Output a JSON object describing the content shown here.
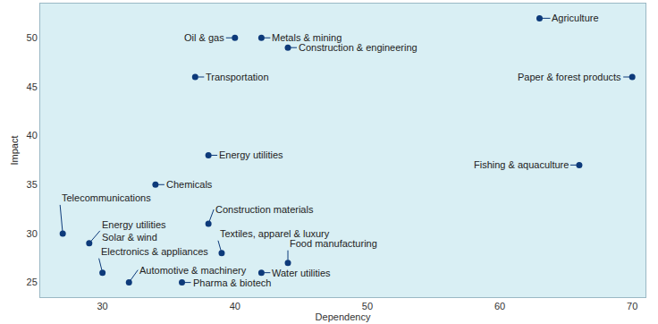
{
  "chart_data": {
    "type": "scatter",
    "xlabel": "Dependency",
    "ylabel": "Impact",
    "labels": [
      "Agriculture",
      "Paper & forest products",
      "Oil & gas",
      "Metals & mining",
      "Construction & engineering",
      "Transportation",
      "Energy utilities",
      "Fishing & aquaculture",
      "Chemicals",
      "Telecommunications",
      "Energy utilities\nSolar & wind",
      "Construction materials",
      "Electronics & appliances",
      "Textiles, apparel & luxury",
      "Food manufacturing",
      "Water utilities",
      "Automotive & machinery",
      "Pharma & biotech"
    ],
    "x": [
      63,
      70,
      40,
      42,
      44,
      37,
      38,
      66,
      34,
      27,
      29,
      38,
      30,
      39,
      44,
      42,
      32,
      36
    ],
    "values": [
      52,
      46,
      50,
      50,
      49,
      46,
      38,
      37,
      35,
      30,
      29,
      31,
      26,
      28,
      27,
      26,
      25,
      25
    ],
    "color": "#0d3a7a",
    "marker": "circle",
    "xlim": [
      25.3,
      71
    ],
    "ylim": [
      23.5,
      53.5
    ],
    "xticks": [
      30,
      40,
      50,
      60,
      70
    ],
    "yticks": [
      25,
      30,
      35,
      40,
      45,
      50
    ],
    "grid": false
  }
}
